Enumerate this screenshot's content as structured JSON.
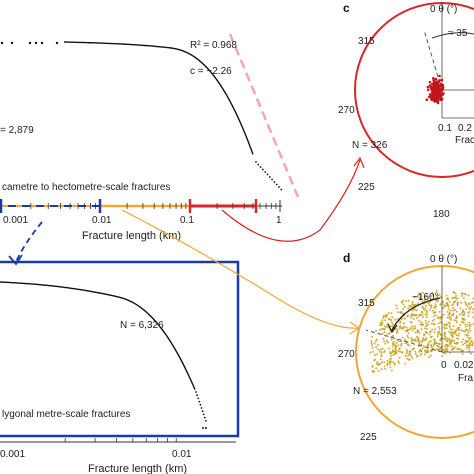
{
  "panels": {
    "c": "c",
    "d": "d"
  },
  "chart_data": [
    {
      "type": "scatter",
      "id": "fracture-length-distribution",
      "xlabel": "Fracture length (km)",
      "x_ticks": [
        "0.001",
        "0.01",
        "0.1",
        "1"
      ],
      "xscale": "log",
      "annotations": {
        "r2": "R² = 0.968",
        "c": "c = −2.26",
        "n": "= 2,879",
        "scale_label": "cametre to hectometre-scale fractures"
      },
      "fit_line_color": "#f4a6ad",
      "length_bands": [
        {
          "color": "#1a3aa8",
          "range": [
            0.0004,
            0.01
          ]
        },
        {
          "color": "#f0a830",
          "range": [
            0.01,
            0.1
          ]
        },
        {
          "color": "#d8262a",
          "range": [
            0.1,
            0.5
          ]
        }
      ]
    },
    {
      "type": "scatter",
      "id": "metre-scale-distribution",
      "xlabel": "Fracture length (km)",
      "x_ticks": [
        "0.001",
        "0.01"
      ],
      "xscale": "log",
      "annotations": {
        "n": "N = 6,326",
        "scale_label": "lygonal metre-scale fractures"
      },
      "frame_color": "#1a3aa8"
    },
    {
      "type": "scatter",
      "id": "polar-c",
      "projection": "polar",
      "theta_label": "0  θ (°)",
      "angle_labels": {
        "a315": "315",
        "a270": "270",
        "a225": "225",
        "a180": "180"
      },
      "radial_ticks": [
        "0.1",
        "0.2"
      ],
      "radial_label": "Frac",
      "spread_label": "≈ 35",
      "n": "N = 326",
      "ring_color": "#d8262a",
      "point_color": "#c0141a"
    },
    {
      "type": "scatter",
      "id": "polar-d",
      "projection": "polar",
      "theta_label": "0  θ (°)",
      "angle_labels": {
        "a315": "315",
        "a270": "270",
        "a225": "225",
        "a180": "180"
      },
      "radial_ticks": [
        "0",
        "0.02"
      ],
      "radial_label": "Fra",
      "spread_label": "~160°",
      "n": "N = 2,553",
      "ring_color": "#f0a830",
      "point_color": "#c9a017"
    }
  ]
}
